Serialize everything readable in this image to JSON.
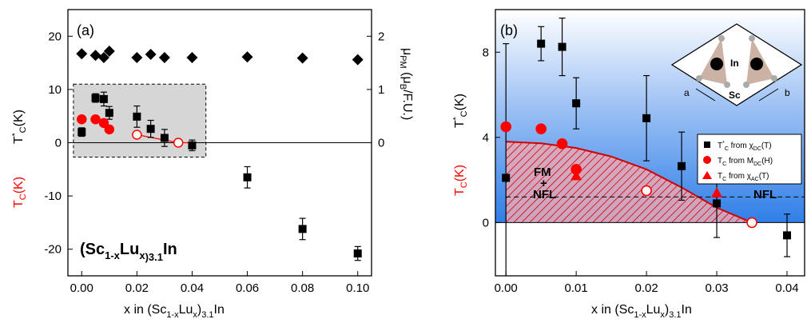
{
  "chart_data": [
    {
      "panel": "(a)",
      "type": "scatter",
      "xlabel": "x in (Sc1-xLux)3.1In",
      "ylabel_black": "T*C(K)",
      "ylabel_red": "TC(K)",
      "y2label": "μPM (μB/F.U.)",
      "annotation": "(Sc1-xLux)3.1In",
      "xlim": [
        -0.005,
        0.105
      ],
      "ylim": [
        -25,
        25
      ],
      "y2lim": [
        0,
        2
      ],
      "x_ticks": [
        "0.00",
        "0.02",
        "0.04",
        "0.06",
        "0.08",
        "0.10"
      ],
      "y_ticks": [
        "20",
        "10",
        "0",
        "-10",
        "-20"
      ],
      "y2_ticks": [
        "2",
        "1",
        "0"
      ],
      "series": [
        {
          "name": "T*C",
          "color": "#000000",
          "marker": "square",
          "points": [
            {
              "x": 0.0,
              "y": 2.0,
              "err": 0.8
            },
            {
              "x": 0.005,
              "y": 8.4,
              "err": 0.8
            },
            {
              "x": 0.008,
              "y": 8.2,
              "err": 1.3
            },
            {
              "x": 0.01,
              "y": 5.6,
              "err": 1.2
            },
            {
              "x": 0.02,
              "y": 4.9,
              "err": 2.0
            },
            {
              "x": 0.025,
              "y": 2.6,
              "err": 1.6
            },
            {
              "x": 0.03,
              "y": 0.9,
              "err": 1.6
            },
            {
              "x": 0.04,
              "y": -0.5,
              "err": 1.0
            },
            {
              "x": 0.06,
              "y": -6.5,
              "err": 2.0
            },
            {
              "x": 0.08,
              "y": -16.2,
              "err": 2.0
            },
            {
              "x": 0.1,
              "y": -20.8,
              "err": 1.3
            }
          ]
        },
        {
          "name": "TC",
          "color": "#ff0000",
          "marker": "circle",
          "points": [
            {
              "x": 0.0,
              "y": 4.4
            },
            {
              "x": 0.005,
              "y": 4.4
            },
            {
              "x": 0.008,
              "y": 3.7
            },
            {
              "x": 0.01,
              "y": 2.5
            },
            {
              "x": 0.02,
              "y": 1.5,
              "open": true
            },
            {
              "x": 0.035,
              "y": 0.0,
              "open": true
            }
          ]
        },
        {
          "name": "μPM",
          "color": "#000000",
          "marker": "diamond",
          "axis": "right",
          "points": [
            {
              "x": 0.0,
              "y": 1.67
            },
            {
              "x": 0.005,
              "y": 1.64
            },
            {
              "x": 0.008,
              "y": 1.6
            },
            {
              "x": 0.01,
              "y": 1.72
            },
            {
              "x": 0.02,
              "y": 1.6
            },
            {
              "x": 0.025,
              "y": 1.66
            },
            {
              "x": 0.03,
              "y": 1.6
            },
            {
              "x": 0.04,
              "y": 1.6
            },
            {
              "x": 0.06,
              "y": 1.61
            },
            {
              "x": 0.08,
              "y": 1.59
            },
            {
              "x": 0.1,
              "y": 1.56
            }
          ]
        }
      ],
      "shaded_box": {
        "x_range": [
          -0.003,
          0.045
        ],
        "y_range": [
          -2.7,
          11.0
        ]
      }
    },
    {
      "panel": "(b)",
      "type": "scatter",
      "xlabel": "x in (Sc1-xLux)3.1In",
      "ylabel_black": "T*C(K)",
      "ylabel_red": "TC(K)",
      "xlim": [
        -0.0015,
        0.0425
      ],
      "ylim": [
        -2.5,
        10.0
      ],
      "x_ticks": [
        "0.00",
        "0.01",
        "0.02",
        "0.03",
        "0.04"
      ],
      "y_ticks": [
        "8",
        "4",
        "0"
      ],
      "region_labels": [
        "FM",
        "+",
        "NFL",
        "NFL"
      ],
      "inset_labels": [
        "In",
        "Sc",
        "a",
        "b"
      ],
      "legend": [
        {
          "label": "T*C from χDC(T)",
          "color": "#000000",
          "marker": "square"
        },
        {
          "label": "TC from MDC(H)",
          "color": "#ff0000",
          "marker": "circle"
        },
        {
          "label": "TC from χAC(T)",
          "color": "#ff0000",
          "marker": "triangle"
        }
      ],
      "series": [
        {
          "name": "T*C from χDC(T)",
          "points": [
            {
              "x": 0.0,
              "y": 2.1,
              "err": 6.3
            },
            {
              "x": 0.005,
              "y": 8.4,
              "err": 0.8
            },
            {
              "x": 0.008,
              "y": 8.25,
              "err": 1.35
            },
            {
              "x": 0.01,
              "y": 5.6,
              "err": 1.2
            },
            {
              "x": 0.02,
              "y": 4.9,
              "err": 2.0
            },
            {
              "x": 0.025,
              "y": 2.65,
              "err": 1.6
            },
            {
              "x": 0.03,
              "y": 0.9,
              "err": 1.6
            },
            {
              "x": 0.04,
              "y": -0.6,
              "err": 1.0
            }
          ]
        },
        {
          "name": "TC from MDC(H)",
          "points": [
            {
              "x": 0.0,
              "y": 4.5
            },
            {
              "x": 0.005,
              "y": 4.4
            },
            {
              "x": 0.008,
              "y": 3.7
            },
            {
              "x": 0.01,
              "y": 2.5
            },
            {
              "x": 0.02,
              "y": 1.5,
              "open": true
            },
            {
              "x": 0.035,
              "y": 0.0,
              "open": true
            }
          ]
        },
        {
          "name": "TC from χAC(T)",
          "points": [
            {
              "x": 0.01,
              "y": 2.2
            },
            {
              "x": 0.03,
              "y": 1.4
            }
          ]
        }
      ],
      "phase_boundary": {
        "x": [
          0.0,
          0.005,
          0.01,
          0.015,
          0.02,
          0.025,
          0.03,
          0.035
        ],
        "y": [
          3.8,
          3.72,
          3.5,
          3.1,
          2.5,
          1.65,
          0.7,
          0.0
        ]
      },
      "dashed_level": 1.2
    }
  ]
}
